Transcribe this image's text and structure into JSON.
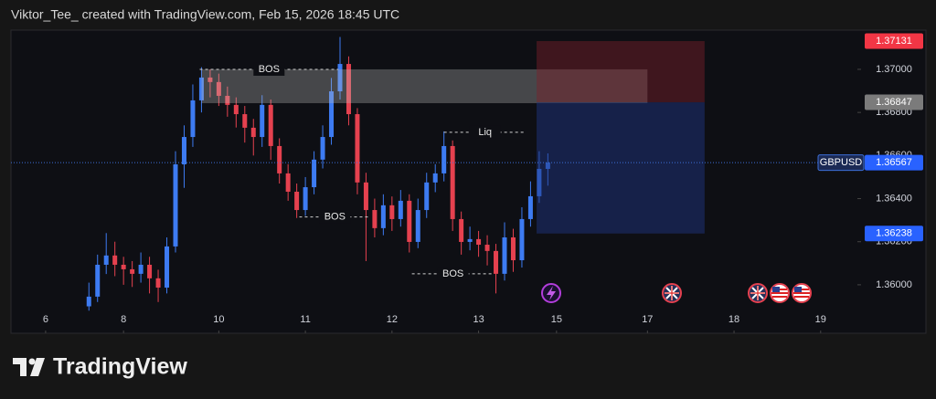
{
  "chart_data": {
    "type": "candlestick",
    "header": "Viktor_Tee_ created with TradingView.com, Feb 15, 2026 18:45 UTC",
    "brand": "TradingView",
    "symbol": "GBPUSD",
    "up_color": "#3d7bf2",
    "down_color": "#e5414f",
    "xlim": [
      0,
      95
    ],
    "ylim": [
      1.35881,
      1.37182
    ],
    "xticks": [
      {
        "value": 4,
        "label": "6"
      },
      {
        "value": 13,
        "label": "8"
      },
      {
        "value": 24,
        "label": "10"
      },
      {
        "value": 34,
        "label": "11"
      },
      {
        "value": 44,
        "label": "12"
      },
      {
        "value": 54,
        "label": "13"
      },
      {
        "value": 63,
        "label": "15"
      },
      {
        "value": 73.5,
        "label": "17"
      },
      {
        "value": 83.5,
        "label": "18"
      },
      {
        "value": 93.5,
        "label": "19"
      }
    ],
    "yticks": [
      {
        "value": 1.36,
        "label": "1.36000"
      },
      {
        "value": 1.362,
        "label": "1.36200"
      },
      {
        "value": 1.364,
        "label": "1.36400"
      },
      {
        "value": 1.366,
        "label": "1.36600"
      },
      {
        "value": 1.368,
        "label": "1.36800"
      },
      {
        "value": 1.37,
        "label": "1.37000"
      }
    ],
    "x": [
      9,
      10,
      11,
      12,
      13,
      14,
      15,
      16,
      17,
      18,
      19,
      20,
      21,
      22,
      23,
      24,
      25,
      26,
      27,
      28,
      29,
      30,
      31,
      32,
      33,
      34,
      35,
      36,
      37,
      38,
      39,
      40,
      41,
      42,
      43,
      44,
      45,
      46,
      47,
      48,
      49,
      50,
      51,
      52,
      53,
      54,
      55,
      56,
      57,
      58,
      59,
      60,
      61,
      62
    ],
    "open": [
      1.359,
      1.35945,
      1.36093,
      1.36136,
      1.36093,
      1.36072,
      1.36051,
      1.36093,
      1.3603,
      1.35987,
      1.36178,
      1.36559,
      1.36686,
      1.36856,
      1.36962,
      1.36941,
      1.36877,
      1.36835,
      1.36792,
      1.36729,
      1.36686,
      1.36835,
      1.36644,
      1.36517,
      1.36432,
      1.36347,
      1.36453,
      1.36581,
      1.36686,
      1.36898,
      1.37025,
      1.36792,
      1.36475,
      1.36347,
      1.36263,
      1.36369,
      1.36305,
      1.3639,
      1.36199,
      1.36347,
      1.36475,
      1.36517,
      1.36644,
      1.36305,
      1.36199,
      1.36212,
      1.36186,
      1.36157,
      1.36051,
      1.3622,
      1.36114,
      1.36305,
      1.36411,
      1.36538
    ],
    "high": [
      1.3601,
      1.3614,
      1.3624,
      1.362,
      1.3613,
      1.3611,
      1.3615,
      1.3613,
      1.3607,
      1.3622,
      1.3662,
      1.3674,
      1.3693,
      1.3701,
      1.37,
      1.3698,
      1.3692,
      1.3687,
      1.3683,
      1.3677,
      1.3688,
      1.3686,
      1.3668,
      1.3656,
      1.3647,
      1.365,
      1.3662,
      1.3674,
      1.3696,
      1.3715,
      1.3706,
      1.3682,
      1.3652,
      1.364,
      1.3642,
      1.3641,
      1.3644,
      1.3642,
      1.364,
      1.3652,
      1.3656,
      1.36712,
      1.3667,
      1.3634,
      1.3627,
      1.3625,
      1.3623,
      1.3619,
      1.3629,
      1.3626,
      1.3636,
      1.3648,
      1.3662,
      1.3661
    ],
    "low": [
      1.3588,
      1.3592,
      1.3605,
      1.3604,
      1.36,
      1.3599,
      1.3601,
      1.3596,
      1.3592,
      1.3596,
      1.3615,
      1.3645,
      1.3664,
      1.368,
      1.3687,
      1.3683,
      1.3678,
      1.3673,
      1.3666,
      1.366,
      1.3664,
      1.3658,
      1.3647,
      1.3639,
      1.3631,
      1.3632,
      1.3642,
      1.3654,
      1.3665,
      1.3686,
      1.3674,
      1.3642,
      1.3611,
      1.3622,
      1.3623,
      1.3625,
      1.3627,
      1.3615,
      1.3617,
      1.3631,
      1.3643,
      1.3648,
      1.3625,
      1.3614,
      1.3616,
      1.3613,
      1.3609,
      1.3596,
      1.3602,
      1.3606,
      1.3608,
      1.3627,
      1.3638,
      1.3646
    ],
    "close": [
      1.35945,
      1.36093,
      1.36136,
      1.36093,
      1.36072,
      1.36051,
      1.36093,
      1.3603,
      1.35987,
      1.36178,
      1.36559,
      1.36686,
      1.36856,
      1.36962,
      1.36941,
      1.36877,
      1.36835,
      1.36792,
      1.36729,
      1.36686,
      1.36835,
      1.36644,
      1.36517,
      1.36432,
      1.36347,
      1.36453,
      1.36581,
      1.36686,
      1.36898,
      1.37025,
      1.36792,
      1.36475,
      1.36347,
      1.36263,
      1.36369,
      1.36305,
      1.3639,
      1.36199,
      1.36347,
      1.36475,
      1.36517,
      1.36644,
      1.36305,
      1.36199,
      1.36212,
      1.36186,
      1.36157,
      1.36051,
      1.3622,
      1.36114,
      1.36305,
      1.36411,
      1.36538,
      1.36567
    ],
    "last_price": 1.36567,
    "zones": [
      {
        "x": [
          22,
          73.5
        ],
        "y": [
          1.36843,
          1.37
        ],
        "color": "rgba(190,190,190,0.32)"
      },
      {
        "x": [
          60.7,
          80.1
        ],
        "y": [
          1.36847,
          1.37131
        ],
        "color": "rgba(125,30,42,0.45)"
      },
      {
        "x": [
          60.7,
          80.1
        ],
        "y": [
          1.36238,
          1.36847
        ],
        "color": "rgba(30,52,125,0.5)"
      }
    ],
    "annotations": [
      {
        "text": "BOS",
        "price": 1.37,
        "x": [
          21.8,
          37.8
        ]
      },
      {
        "text": "BOS",
        "price": 1.36315,
        "x": [
          33.3,
          41.5
        ]
      },
      {
        "text": "Liq",
        "price": 1.36708,
        "x": [
          50,
          59.5
        ]
      },
      {
        "text": "BOS",
        "price": 1.36051,
        "x": [
          46.3,
          55.8
        ]
      }
    ],
    "price_tags": [
      {
        "value": 1.37131,
        "color": "#f23645"
      },
      {
        "value": 1.36847,
        "color": "#7b7b7b"
      },
      {
        "value": 1.36238,
        "color": "#2962ff"
      }
    ]
  }
}
